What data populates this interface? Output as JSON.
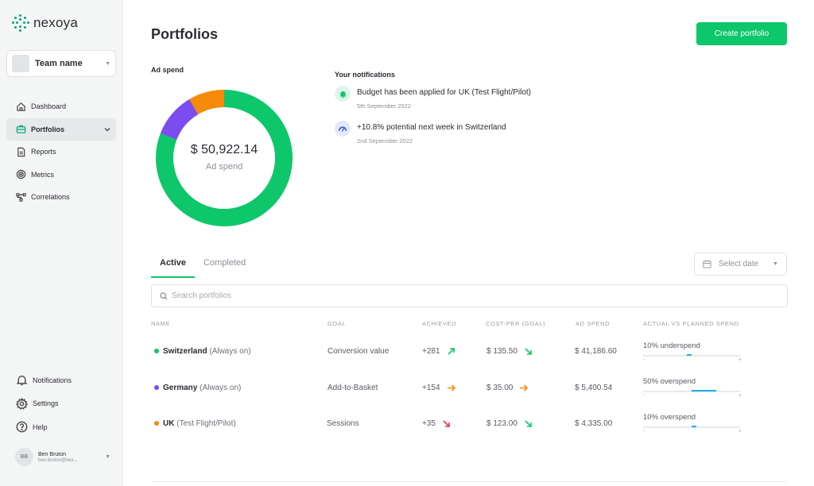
{
  "app": {
    "name": "nexoya"
  },
  "team": {
    "name": "Team name"
  },
  "nav": {
    "items": [
      {
        "label": "Dashboard",
        "icon": "home-icon"
      },
      {
        "label": "Portfolios",
        "icon": "portfolio-icon",
        "active": true
      },
      {
        "label": "Reports",
        "icon": "report-icon"
      },
      {
        "label": "Metrics",
        "icon": "metrics-icon"
      },
      {
        "label": "Correlations",
        "icon": "correlations-icon"
      }
    ],
    "bottom": [
      {
        "label": "Notifications",
        "icon": "bell-icon"
      },
      {
        "label": "Settings",
        "icon": "gear-icon"
      },
      {
        "label": "Help",
        "icon": "help-icon"
      }
    ]
  },
  "user": {
    "initials": "BB",
    "name": "Ben Bruton",
    "email": "ben.bruton@nex..."
  },
  "page": {
    "title": "Portfolios",
    "create_label": "Create portfolio"
  },
  "adspend": {
    "label": "Ad spend",
    "total": "$ 50,922.14",
    "sublabel": "Ad spend",
    "segments": [
      {
        "name": "Switzerland",
        "value": 41186.6,
        "color": "#0ec76a"
      },
      {
        "name": "Germany",
        "value": 5400.54,
        "color": "#7b4cf0"
      },
      {
        "name": "UK",
        "value": 4335.0,
        "color": "#f58a0b"
      }
    ]
  },
  "notifications": {
    "title": "Your notifications",
    "items": [
      {
        "text": "Budget has been applied for UK (Test Flight/Pilot)",
        "date": "5th September 2022",
        "icon": "bell-icon"
      },
      {
        "text": "+10.8% potential next week in Switzerland",
        "date": "2nd September 2022",
        "icon": "gauge-icon"
      }
    ]
  },
  "tabs": [
    {
      "label": "Active",
      "active": true
    },
    {
      "label": "Completed",
      "active": false
    }
  ],
  "date_select": {
    "placeholder": "Select date"
  },
  "search": {
    "placeholder": "Search portfolios"
  },
  "table": {
    "headers": {
      "name": "NAME",
      "goal": "GOAL",
      "achieved": "ACHIEVED",
      "cost": "COST-PER (GOAL)",
      "spend": "AD SPEND",
      "actual": "ACTUAL VS PLANNED SPEND"
    },
    "rows": [
      {
        "color": "#0ec76a",
        "name": "Switzerland",
        "type": "(Always on)",
        "goal": "Conversion value",
        "achieved": "+281",
        "achieved_trend": "up",
        "cost": "$ 135.50",
        "cost_trend": "down-good",
        "spend": "$ 41,186.60",
        "actual": "10% underspend",
        "actual_from": 0.45,
        "actual_to": 0.5,
        "minus": "-",
        "plus": "+"
      },
      {
        "color": "#7b4cf0",
        "name": "Germany",
        "type": "(Always on)",
        "goal": "Add-to-Basket",
        "achieved": "+154",
        "achieved_trend": "flat",
        "cost": "$ 35.00",
        "cost_trend": "flat",
        "spend": "$ 5,400.54",
        "actual": "50% overspend",
        "actual_from": 0.5,
        "actual_to": 0.75,
        "minus": "-",
        "plus": "+"
      },
      {
        "color": "#f58a0b",
        "name": "UK",
        "type": "(Test Flight/Pilot)",
        "goal": "Sessions",
        "achieved": "+35",
        "achieved_trend": "down-bad",
        "cost": "$ 123.00",
        "cost_trend": "down-good",
        "spend": "$ 4,335.00",
        "actual": "10% overspend",
        "actual_from": 0.5,
        "actual_to": 0.55,
        "minus": "-",
        "plus": "+"
      }
    ]
  }
}
